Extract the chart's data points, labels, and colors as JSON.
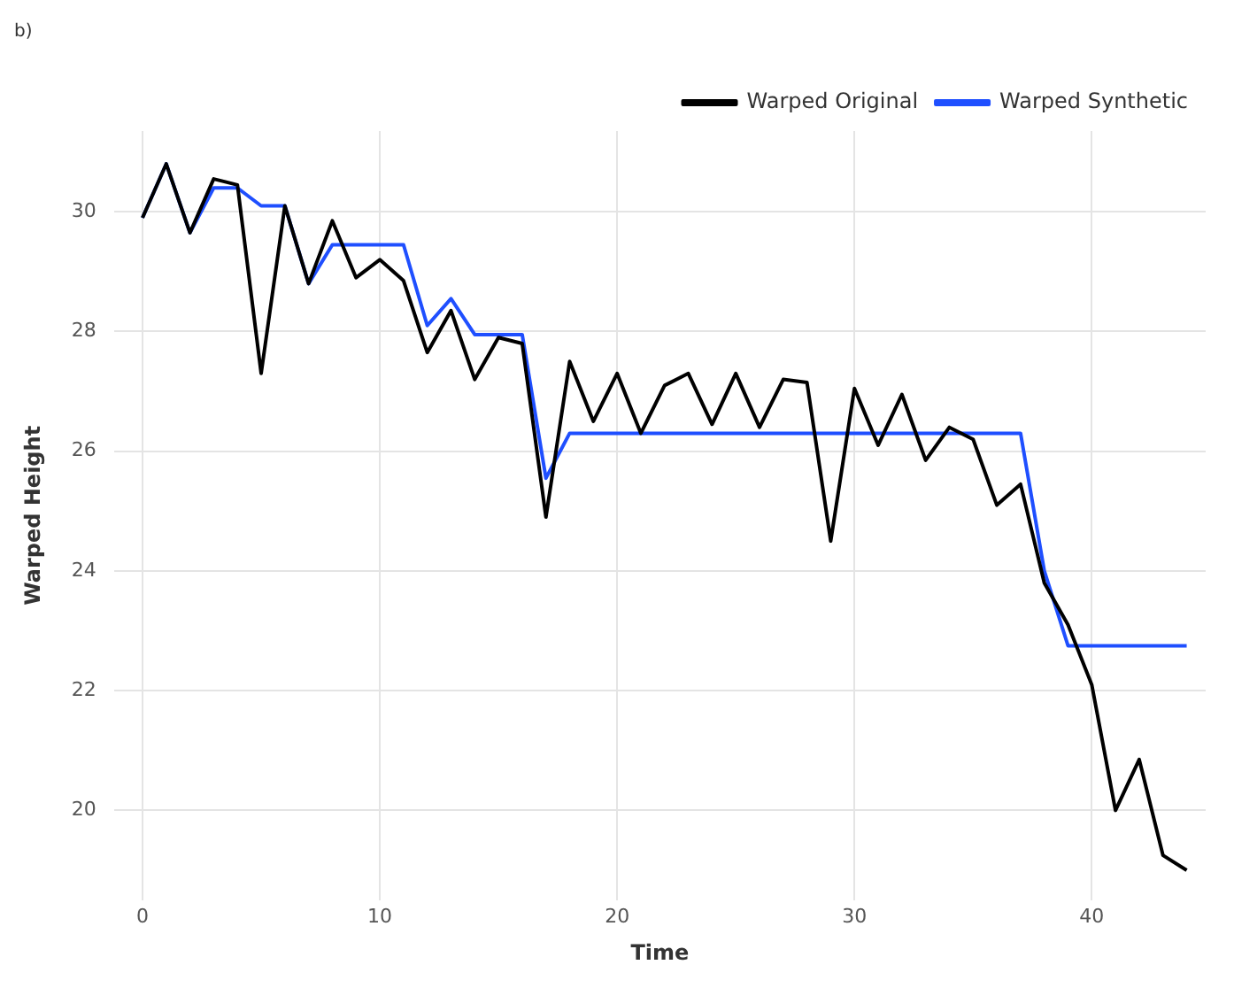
{
  "chart_data": {
    "type": "line",
    "title": "b)",
    "xlabel": "Time",
    "ylabel": "Warped Height",
    "x": [
      0,
      1,
      2,
      3,
      4,
      5,
      6,
      7,
      8,
      9,
      10,
      11,
      12,
      13,
      14,
      15,
      16,
      17,
      18,
      19,
      20,
      21,
      22,
      23,
      24,
      25,
      26,
      27,
      28,
      29,
      30,
      31,
      32,
      33,
      34,
      35,
      36,
      37,
      38,
      39,
      40,
      41,
      42,
      43,
      44
    ],
    "series": [
      {
        "name": "Warped Original",
        "color": "#000000",
        "values": [
          29.9,
          30.8,
          29.65,
          30.55,
          30.45,
          27.3,
          30.1,
          28.8,
          29.85,
          28.9,
          29.2,
          28.85,
          27.65,
          28.35,
          27.2,
          27.9,
          27.8,
          24.9,
          27.5,
          26.5,
          27.3,
          26.3,
          27.1,
          27.3,
          26.45,
          27.3,
          26.4,
          27.2,
          27.15,
          24.5,
          27.05,
          26.1,
          26.95,
          25.85,
          26.4,
          26.2,
          25.1,
          25.45,
          23.8,
          23.1,
          22.1,
          20.0,
          20.85,
          19.25,
          19.0
        ]
      },
      {
        "name": "Warped Synthetic",
        "color": "#1f4fff",
        "values": [
          29.9,
          30.8,
          29.65,
          30.4,
          30.4,
          30.1,
          30.1,
          28.8,
          29.45,
          29.45,
          29.45,
          29.45,
          28.1,
          28.55,
          27.95,
          27.95,
          27.95,
          25.55,
          26.3,
          26.3,
          26.3,
          26.3,
          26.3,
          26.3,
          26.3,
          26.3,
          26.3,
          26.3,
          26.3,
          26.3,
          26.3,
          26.3,
          26.3,
          26.3,
          26.3,
          26.3,
          26.3,
          26.3,
          24.0,
          22.75,
          22.75,
          22.75,
          22.75,
          22.75,
          22.75
        ]
      }
    ],
    "xlim": [
      -1.2,
      44.8
    ],
    "ylim": [
      18.5,
      31.35
    ],
    "xticks": [
      0,
      10,
      20,
      30,
      40
    ],
    "yticks": [
      20,
      22,
      24,
      26,
      28,
      30
    ],
    "grid": true,
    "legend": "top right",
    "marker": "none",
    "line_style": "solid"
  }
}
